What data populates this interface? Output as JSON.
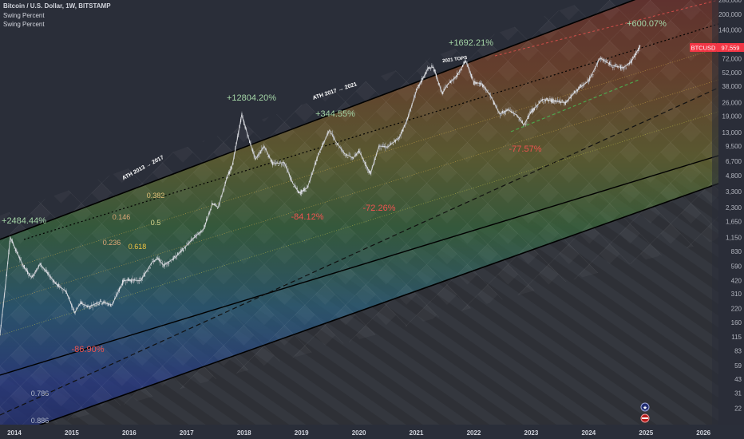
{
  "header": {
    "title": "Bitcoin / U.S. Dollar, 1W, BITSTAMP",
    "indicators": [
      "Swing Percent",
      "Swing Percent"
    ]
  },
  "price_tag": {
    "symbol": "BTCUSD",
    "value": "97,559"
  },
  "colors": {
    "background": "#2a2e39",
    "candles": "#c8cbd2",
    "swing_line": "#e8eaed",
    "gain_text": "#a5d6a7",
    "loss_text": "#ef5350",
    "price_tag": "#f23645",
    "fib_label": "#f0c542"
  },
  "chart_data": {
    "type": "line",
    "title": "Bitcoin / U.S. Dollar, 1W, BITSTAMP",
    "y_scale": "log",
    "ylim": [
      15,
      280000
    ],
    "xlim": [
      2013.75,
      2026.15
    ],
    "y_ticks": [
      280000,
      200000,
      140000,
      98000,
      72000,
      52000,
      38000,
      26000,
      19000,
      13000,
      9500,
      6700,
      4800,
      3300,
      2300,
      1650,
      1150,
      830,
      590,
      420,
      310,
      220,
      160,
      115,
      83,
      59,
      43,
      31,
      22
    ],
    "y_tick_labels": [
      "280,000",
      "200,000",
      "140,000",
      "98,000",
      "72,000",
      "52,000",
      "38,000",
      "26,000",
      "19,000",
      "13,000",
      "9,500",
      "6,700",
      "4,800",
      "3,300",
      "2,300",
      "1,650",
      "1,150",
      "830",
      "590",
      "420",
      "310",
      "220",
      "160",
      "115",
      "83",
      "59",
      "43",
      "31",
      "22"
    ],
    "x_ticks": [
      2014,
      2015,
      2016,
      2017,
      2018,
      2019,
      2020,
      2021,
      2022,
      2023,
      2024,
      2025,
      2026
    ],
    "x_tick_labels": [
      "2014",
      "2015",
      "2016",
      "2017",
      "2018",
      "2019",
      "2020",
      "2021",
      "2022",
      "2023",
      "2024",
      "2025",
      "2026"
    ],
    "series": [
      {
        "x": [
          2013.75,
          2013.85,
          2013.93,
          2014.05,
          2014.15,
          2014.3,
          2014.45,
          2014.6,
          2014.75,
          2014.9,
          2015.05,
          2015.15,
          2015.3,
          2015.5,
          2015.7,
          2015.9,
          2016.0,
          2016.2,
          2016.4,
          2016.5,
          2016.6,
          2016.8,
          2017.0,
          2017.1,
          2017.3,
          2017.45,
          2017.55,
          2017.7,
          2017.8,
          2017.96,
          2018.1,
          2018.2,
          2018.35,
          2018.5,
          2018.7,
          2018.85,
          2018.96,
          2019.1,
          2019.3,
          2019.49,
          2019.6,
          2019.75,
          2019.9,
          2020.0,
          2020.2,
          2020.35,
          2020.5,
          2020.7,
          2020.85,
          2021.0,
          2021.2,
          2021.3,
          2021.45,
          2021.55,
          2021.7,
          2021.86,
          2022.0,
          2022.15,
          2022.3,
          2022.45,
          2022.6,
          2022.75,
          2022.87,
          2023.0,
          2023.2,
          2023.4,
          2023.6,
          2023.8,
          2024.0,
          2024.2,
          2024.4,
          2024.6,
          2024.75,
          2024.9
        ],
        "y": [
          120,
          400,
          1150,
          800,
          600,
          450,
          620,
          480,
          380,
          330,
          200,
          250,
          230,
          260,
          240,
          420,
          430,
          420,
          650,
          700,
          600,
          720,
          950,
          1100,
          1400,
          2500,
          2300,
          4500,
          6200,
          19500,
          10500,
          7000,
          9500,
          6300,
          6500,
          4000,
          3200,
          3600,
          8000,
          13800,
          10500,
          8000,
          7200,
          8500,
          5000,
          9500,
          9300,
          11500,
          18000,
          34000,
          57000,
          59000,
          32000,
          40000,
          48000,
          68500,
          42000,
          40000,
          30000,
          20000,
          22000,
          19500,
          15500,
          21000,
          28000,
          27000,
          26000,
          35000,
          43000,
          73000,
          62000,
          58000,
          68000,
          97559
        ]
      }
    ],
    "annotations": [
      {
        "text": "+2484.44%",
        "kind": "gain"
      },
      {
        "text": "+12804.20%",
        "kind": "gain"
      },
      {
        "text": "+344.55%",
        "kind": "gain"
      },
      {
        "text": "+1692.21%",
        "kind": "gain"
      },
      {
        "text": "+600.07%",
        "kind": "gain"
      },
      {
        "text": "-86.90%",
        "kind": "loss"
      },
      {
        "text": "-84.12%",
        "kind": "loss"
      },
      {
        "text": "-72.26%",
        "kind": "loss"
      },
      {
        "text": "-77.57%",
        "kind": "loss"
      },
      {
        "text": "ATH 2013 → 2017",
        "kind": "label"
      },
      {
        "text": "ATH 2017 → 2021",
        "kind": "label"
      },
      {
        "text": "2021 TOPS",
        "kind": "label"
      }
    ],
    "fib_levels": [
      "0.146",
      "0.236",
      "0.382",
      "0.5",
      "0.618",
      "0.786",
      "0.886"
    ],
    "grid": false,
    "legend": "none"
  }
}
